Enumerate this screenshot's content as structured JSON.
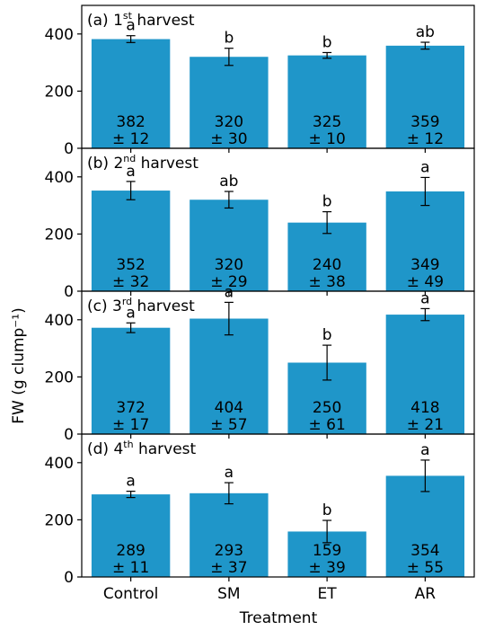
{
  "chart_data": {
    "type": "bar",
    "ylabel": "FW (g clump⁻¹)",
    "xlabel": "Treatment",
    "categories": [
      "Control",
      "SM",
      "ET",
      "AR"
    ],
    "ylim": [
      0,
      500
    ],
    "yticks": [
      0,
      200,
      400
    ],
    "bar_color": "#1f96c9",
    "panels": [
      {
        "label": "(a) 1",
        "sup": "st",
        "label_tail": " harvest",
        "values": [
          382,
          320,
          325,
          359
        ],
        "errors": [
          12,
          30,
          10,
          12
        ],
        "letters": [
          "a",
          "b",
          "b",
          "ab"
        ],
        "value_text": [
          "382",
          "320",
          "325",
          "359"
        ],
        "error_text": [
          "± 12",
          "± 30",
          "± 10",
          "± 12"
        ]
      },
      {
        "label": "(b) 2",
        "sup": "nd",
        "label_tail": " harvest",
        "values": [
          352,
          320,
          240,
          349
        ],
        "errors": [
          32,
          29,
          38,
          49
        ],
        "letters": [
          "a",
          "ab",
          "b",
          "a"
        ],
        "value_text": [
          "352",
          "320",
          "240",
          "349"
        ],
        "error_text": [
          "± 32",
          "± 29",
          "± 38",
          "± 49"
        ]
      },
      {
        "label": "(c) 3",
        "sup": "rd",
        "label_tail": " harvest",
        "values": [
          372,
          404,
          250,
          418
        ],
        "errors": [
          17,
          57,
          61,
          21
        ],
        "letters": [
          "a",
          "a",
          "b",
          "a"
        ],
        "value_text": [
          "372",
          "404",
          "250",
          "418"
        ],
        "error_text": [
          "± 17",
          "± 57",
          "± 61",
          "± 21"
        ]
      },
      {
        "label": "(d) 4",
        "sup": "th",
        "label_tail": " harvest",
        "values": [
          289,
          293,
          159,
          354
        ],
        "errors": [
          11,
          37,
          39,
          55
        ],
        "letters": [
          "a",
          "a",
          "b",
          "a"
        ],
        "value_text": [
          "289",
          "293",
          "159",
          "354"
        ],
        "error_text": [
          "± 11",
          "± 37",
          "± 39",
          "± 55"
        ]
      }
    ]
  }
}
